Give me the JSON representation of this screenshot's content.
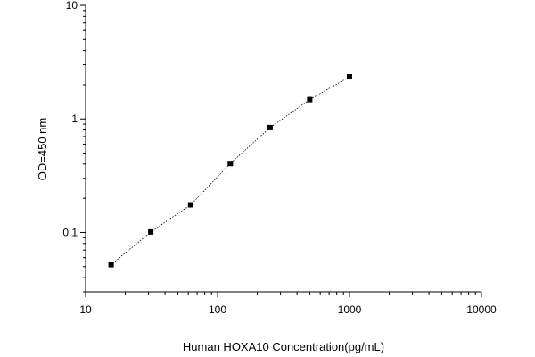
{
  "chart_data": {
    "type": "scatter",
    "title": "",
    "xlabel": "Human HOXA10 Concentration(pg/mL)",
    "ylabel": "OD=450 nm",
    "x_scale": "log",
    "y_scale": "log",
    "xlim": [
      10,
      10000
    ],
    "ylim": [
      0.03,
      10
    ],
    "x_ticks": [
      {
        "value": 10,
        "label": "10"
      },
      {
        "value": 100,
        "label": "100"
      },
      {
        "value": 1000,
        "label": "1000"
      },
      {
        "value": 10000,
        "label": "10000"
      }
    ],
    "y_ticks": [
      {
        "value": 0.1,
        "label": "0.1"
      },
      {
        "value": 1,
        "label": "1"
      },
      {
        "value": 10,
        "label": "10"
      }
    ],
    "grid": false,
    "legend": "none",
    "marker": "square",
    "line_style": "dotted",
    "color": "#000000",
    "series": [
      {
        "x": [
          15.6,
          31.2,
          62.5,
          125,
          250,
          500,
          1000
        ],
        "y": [
          0.052,
          0.101,
          0.175,
          0.405,
          0.84,
          1.48,
          2.35
        ]
      }
    ]
  }
}
